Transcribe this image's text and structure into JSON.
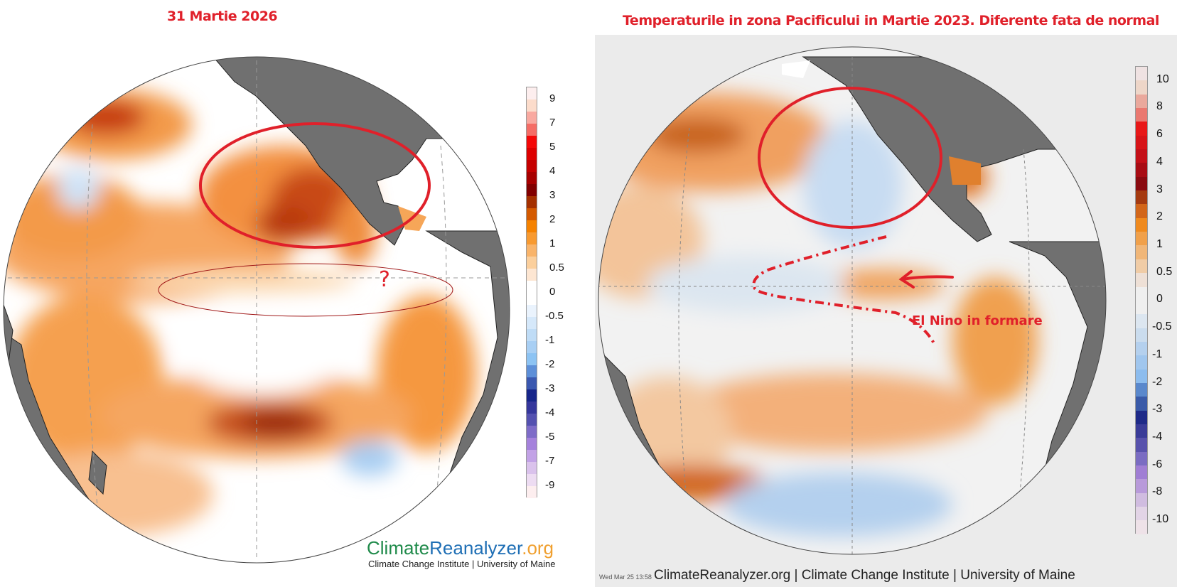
{
  "left_panel": {
    "title": "31 Martie 2026",
    "logo": {
      "part1": "Climate",
      "part2": "Reanalyzer",
      "part3": ".org",
      "subtitle": "Climate Change Institute | University of Maine"
    },
    "annotation_question": "?",
    "colorbar": {
      "labels": [
        "9",
        "7",
        "5",
        "4",
        "3",
        "2",
        "1",
        "0.5",
        "0",
        "-0.5",
        "-1",
        "-2",
        "-3",
        "-4",
        "-5",
        "-7",
        "-9"
      ],
      "colors": [
        "#fdeeee",
        "#fcdccb",
        "#f9a9a0",
        "#f56d66",
        "#f40808",
        "#dd0000",
        "#c50000",
        "#a70000",
        "#820000",
        "#a53000",
        "#d45a00",
        "#f58200",
        "#f89a30",
        "#f9b46a",
        "#fbcf9c",
        "#fde6d2",
        "#ffffff",
        "#ffffff",
        "#eaf3fd",
        "#d5e8fa",
        "#bfdcf6",
        "#a8cff4",
        "#8cc3f3",
        "#5d8fd8",
        "#3a58b0",
        "#17268a",
        "#35379c",
        "#5451b0",
        "#7e6cc8",
        "#a582dc",
        "#c2a2e6",
        "#dac2ec",
        "#eddcf2",
        "#fdeeef"
      ]
    }
  },
  "right_panel": {
    "title": "Temperaturile in zona Pacificului in Martie 2023. Diferente fata de normal",
    "annotation_label": "El Nino in formare",
    "footer_timestamp": "Wed Mar 25 13:58",
    "footer": "ClimateReanalyzer.org | Climate Change Institute | University of Maine",
    "colorbar": {
      "labels": [
        "10",
        "8",
        "6",
        "4",
        "3",
        "2",
        "1",
        "0.5",
        "0",
        "-0.5",
        "-1",
        "-2",
        "-3",
        "-4",
        "-6",
        "-8",
        "-10"
      ],
      "colors": [
        "#efe2e2",
        "#eed6c8",
        "#eaa89c",
        "#ea7870",
        "#e81818",
        "#d71418",
        "#c41018",
        "#a80c14",
        "#8a0a10",
        "#a53a10",
        "#d2661a",
        "#ef8a1e",
        "#f0a04a",
        "#f0b678",
        "#f0cca6",
        "#eee0d6",
        "#efefef",
        "#efefef",
        "#dce6f0",
        "#cadcee",
        "#b4d0ee",
        "#a0c6ee",
        "#8cbcee",
        "#5a88cc",
        "#3a5aa8",
        "#1e2a88",
        "#3a3c98",
        "#5852ac",
        "#7a6cc2",
        "#a07ed4",
        "#b89ada",
        "#d0bce0",
        "#e2d4e6",
        "#eee2e8"
      ]
    }
  },
  "chart_data": [
    {
      "type": "heatmap",
      "title": "31 Martie 2026",
      "description": "Orthographic globe map of Pacific sea surface temperature anomalies (°C)",
      "colorbar_ticks": [
        9,
        7,
        5,
        4,
        3,
        2,
        1,
        0.5,
        0,
        -0.5,
        -1,
        -2,
        -3,
        -4,
        -5,
        -7,
        -9
      ],
      "colorbar_range": [
        -9,
        9
      ],
      "annotations": [
        "red ellipse over NE Pacific warm anomaly off Baja California",
        "thin ellipse along equatorial Pacific",
        "question mark near eastern equatorial Pacific"
      ],
      "source": "ClimateReanalyzer.org"
    },
    {
      "type": "heatmap",
      "title": "Temperaturile in zona Pacificului in Martie 2023. Diferente fata de normal",
      "description": "Orthographic globe map of Pacific sea surface temperature anomalies (°C)",
      "colorbar_ticks": [
        10,
        8,
        6,
        4,
        3,
        2,
        1,
        0.5,
        0,
        -0.5,
        -1,
        -2,
        -3,
        -4,
        -6,
        -8,
        -10
      ],
      "colorbar_range": [
        -10,
        10
      ],
      "annotations": [
        "red circle over NE Pacific cool anomaly off California",
        "dashed red wedge outline across equatorial Pacific",
        "arrow pointing west at warm eastern equatorial anomaly",
        "El Nino in formare"
      ],
      "source": "ClimateReanalyzer.org"
    }
  ]
}
